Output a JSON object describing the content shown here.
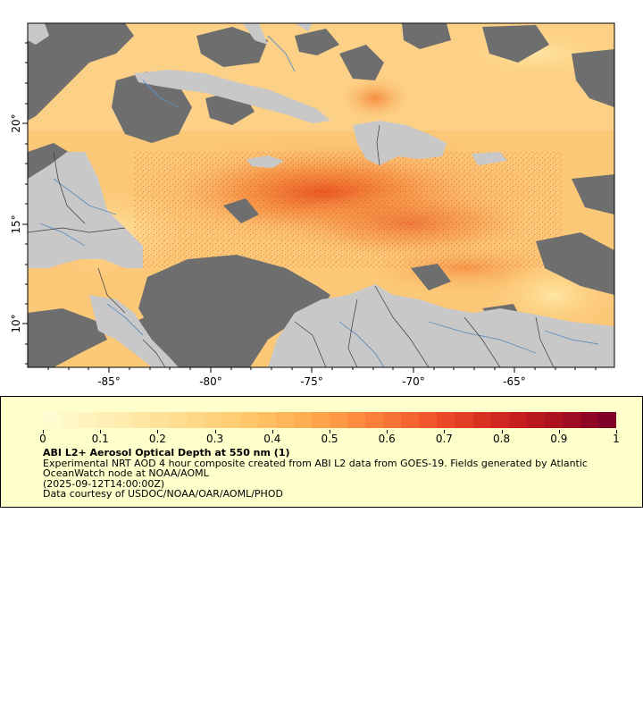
{
  "map": {
    "longitude_ticks": [
      "-85°",
      "-80°",
      "-75°",
      "-70°",
      "-65°"
    ],
    "latitude_ticks": [
      "20°",
      "15°",
      "10°"
    ],
    "colors": {
      "land": "#c8c8c8",
      "no_data": "#6e6e6e",
      "borders": "#3a3a3a",
      "rivers": "#5f8fbf"
    }
  },
  "colorbar": {
    "tick_labels": [
      "0",
      "0.1",
      "0.2",
      "0.3",
      "0.4",
      "0.5",
      "0.6",
      "0.7",
      "0.8",
      "0.9",
      "1"
    ],
    "colors": [
      "#fffbd0",
      "#fff1b8",
      "#ffe6a2",
      "#ffd98a",
      "#ffcb70",
      "#ffb85a",
      "#ff9f48",
      "#fc7f3a",
      "#f45a2e",
      "#e03a24",
      "#c8201e",
      "#a80f22",
      "#7f0026"
    ]
  },
  "legend": {
    "title": "ABI L2+ Aerosol Optical Depth at 550 nm (1)",
    "description": "Experimental NRT AOD 4 hour composite created from ABI L2 data from GOES-19. Fields generated by Atlantic OceanWatch node at NOAA/AOML",
    "time": "(2025-09-12T14:00:00Z)",
    "credit": "Data courtesy of USDOC/NOAA/OAR/AOML/PHOD"
  }
}
